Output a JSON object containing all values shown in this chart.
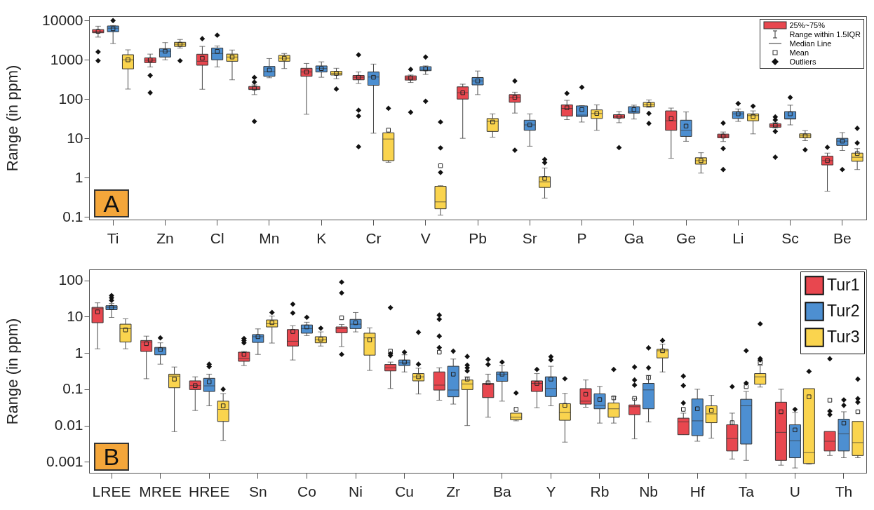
{
  "chart_data": [
    {
      "type": "box",
      "title": "A",
      "ylabel": "Range (in ppm)",
      "log": true,
      "ylim": [
        0.085,
        13000
      ],
      "yticks": [
        0.1,
        1,
        10,
        100,
        1000,
        10000
      ],
      "categories": [
        "Ti",
        "Zn",
        "Cl",
        "Mn",
        "K",
        "Cr",
        "V",
        "Pb",
        "Sr",
        "P",
        "Ga",
        "Ge",
        "Li",
        "Sc",
        "Be"
      ],
      "annotations": [
        "25%~75%",
        "Range within 1.5IQR",
        "Median Line",
        "Mean",
        "Outliers"
      ],
      "series": [
        {
          "color": "#e8474f",
          "boxes": [
            {
              "low": 3800,
              "q1": 4900,
              "median": 5300,
              "q3": 5900,
              "high": 7200,
              "mean": 5300,
              "outliers": [
                1600,
                950
              ]
            },
            {
              "low": 660,
              "q1": 850,
              "median": 980,
              "q3": 1120,
              "high": 1400,
              "mean": 1000,
              "outliers": [
                400,
                145
              ]
            },
            {
              "low": 178,
              "q1": 730,
              "median": 920,
              "q3": 1390,
              "high": 2200,
              "mean": 1100,
              "outliers": [
                3450
              ]
            },
            {
              "low": 130,
              "q1": 175,
              "median": 190,
              "q3": 210,
              "high": 230,
              "mean": 190,
              "outliers": [
                355,
                270,
                27
              ]
            },
            {
              "low": 41,
              "q1": 380,
              "median": 490,
              "q3": 610,
              "high": 810,
              "mean": 490
            },
            {
              "low": 250,
              "q1": 310,
              "median": 360,
              "q3": 400,
              "high": 490,
              "mean": 360,
              "outliers": [
                1340,
                52,
                37,
                6.1
              ]
            },
            {
              "low": 265,
              "q1": 305,
              "median": 345,
              "q3": 390,
              "high": 410,
              "mean": 345,
              "outliers": [
                570,
                46
              ]
            },
            {
              "low": 10,
              "q1": 100,
              "median": 145,
              "q3": 205,
              "high": 240,
              "mean": 145
            },
            {
              "low": 44,
              "q1": 83,
              "median": 110,
              "q3": 130,
              "high": 150,
              "mean": 110,
              "outliers": [
                290,
                5
              ]
            },
            {
              "low": 30,
              "q1": 37,
              "median": 58,
              "q3": 71,
              "high": 93,
              "mean": 60,
              "outliers": [
                140
              ]
            },
            {
              "low": 25,
              "q1": 33,
              "median": 36,
              "q3": 40,
              "high": 48,
              "mean": 36,
              "outliers": [
                5.8
              ]
            },
            {
              "low": 3.1,
              "q1": 16,
              "median": 28,
              "q3": 50,
              "high": 59,
              "mean": 32
            },
            {
              "low": 8.3,
              "q1": 10.3,
              "median": 11.4,
              "q3": 12.8,
              "high": 14.5,
              "mean": 11.4,
              "outliers": [
                24.5,
                5.5,
                1.6
              ]
            },
            {
              "low": 18.5,
              "q1": 19.2,
              "median": 21.7,
              "q3": 23.5,
              "high": 25,
              "mean": 21.7,
              "outliers": [
                35,
                29.5,
                15,
                3.3
              ]
            },
            {
              "low": 0.45,
              "q1": 2.1,
              "median": 2.7,
              "q3": 3.5,
              "high": 4.2,
              "mean": 2.7,
              "outliers": [
                5.9
              ]
            }
          ]
        },
        {
          "color": "#4d8fd1",
          "boxes": [
            {
              "low": 2600,
              "q1": 5200,
              "median": 6400,
              "q3": 7300,
              "high": 7500,
              "mean": 6200,
              "outliers": [
                10000
              ]
            },
            {
              "low": 1000,
              "q1": 1180,
              "median": 1660,
              "q3": 1930,
              "high": 2750,
              "mean": 1660
            },
            {
              "low": 660,
              "q1": 1000,
              "median": 1450,
              "q3": 2000,
              "high": 2250,
              "mean": 1640,
              "outliers": [
                4250
              ]
            },
            {
              "low": 350,
              "q1": 380,
              "median": 500,
              "q3": 680,
              "high": 1080,
              "mean": 550
            },
            {
              "low": 360,
              "q1": 490,
              "median": 600,
              "q3": 700,
              "high": 890,
              "mean": 600
            },
            {
              "low": 13.5,
              "q1": 225,
              "median": 365,
              "q3": 490,
              "high": 780,
              "mean": 360
            },
            {
              "low": 425,
              "q1": 530,
              "median": 580,
              "q3": 670,
              "high": 700,
              "mean": 590,
              "outliers": [
                1180,
                88
              ]
            },
            {
              "low": 130,
              "q1": 230,
              "median": 290,
              "q3": 355,
              "high": 520,
              "mean": 290
            },
            {
              "low": 6.3,
              "q1": 16,
              "median": 22,
              "q3": 29,
              "high": 42,
              "mean": 22
            },
            {
              "low": 26,
              "q1": 36,
              "median": 39,
              "q3": 67,
              "high": 68,
              "mean": 54,
              "outliers": [
                200
              ]
            },
            {
              "low": 31,
              "q1": 44,
              "median": 48,
              "q3": 64,
              "high": 70,
              "mean": 54
            },
            {
              "low": 8.4,
              "q1": 11.2,
              "median": 16,
              "q3": 29,
              "high": 47,
              "mean": 20.5
            },
            {
              "low": 27,
              "q1": 32,
              "median": 42,
              "q3": 48,
              "high": 56,
              "mean": 42,
              "outliers": [
                77
              ]
            },
            {
              "low": 22,
              "q1": 31,
              "median": 32,
              "q3": 48,
              "high": 70,
              "mean": 42,
              "outliers": [
                110
              ]
            },
            {
              "low": 4.9,
              "q1": 6.6,
              "median": 8.5,
              "q3": 10,
              "high": 14,
              "mean": 8.5,
              "outliers": [
                1.6
              ]
            }
          ]
        },
        {
          "color": "#fad44e",
          "boxes": [
            {
              "low": 180,
              "q1": 590,
              "median": 1000,
              "q3": 1350,
              "high": 1800,
              "mean": 1000
            },
            {
              "low": 2000,
              "q1": 2200,
              "median": 2500,
              "q3": 2800,
              "high": 3300,
              "mean": 2500,
              "outliers": [
                950
              ]
            },
            {
              "low": 310,
              "q1": 920,
              "median": 1180,
              "q3": 1400,
              "high": 1780,
              "mean": 1180
            },
            {
              "low": 600,
              "q1": 920,
              "median": 1100,
              "q3": 1300,
              "high": 1450,
              "mean": 1100
            },
            {
              "low": 330,
              "q1": 410,
              "median": 450,
              "q3": 510,
              "high": 610,
              "mean": 450,
              "outliers": [
                180
              ]
            },
            {
              "low": 2.45,
              "q1": 2.7,
              "median": 9.6,
              "q3": 13.8,
              "high": 13.8,
              "mean": 16.2,
              "outliers": [
                58
              ]
            },
            {
              "low": 0.11,
              "q1": 0.16,
              "median": 0.24,
              "q3": 0.6,
              "high": 0.62,
              "mean": 2,
              "outliers": [
                26,
                5.7,
                1.35
              ]
            },
            {
              "low": 10.7,
              "q1": 15,
              "median": 27,
              "q3": 32,
              "high": 42,
              "mean": 26
            },
            {
              "low": 0.3,
              "q1": 0.56,
              "median": 0.78,
              "q3": 1.05,
              "high": 1.75,
              "mean": 0.95,
              "outliers": [
                2.9,
                2.4
              ]
            },
            {
              "low": 16,
              "q1": 32,
              "median": 43,
              "q3": 53,
              "high": 71,
              "mean": 43
            },
            {
              "low": 62,
              "q1": 64,
              "median": 72,
              "q3": 82,
              "high": 95,
              "mean": 72,
              "outliers": [
                43,
                24
              ]
            },
            {
              "low": 1.3,
              "q1": 2.2,
              "median": 2.7,
              "q3": 3.2,
              "high": 4.3,
              "mean": 2.7
            },
            {
              "low": 13,
              "q1": 28,
              "median": 38,
              "q3": 42,
              "high": 50,
              "mean": 36,
              "outliers": [
                66
              ]
            },
            {
              "low": 8.7,
              "q1": 10.3,
              "median": 11.5,
              "q3": 13,
              "high": 15.7,
              "mean": 11.5,
              "outliers": [
                5.1
              ]
            },
            {
              "low": 1.6,
              "q1": 2.6,
              "median": 3.3,
              "q3": 4.2,
              "high": 5.5,
              "mean": 4.1,
              "outliers": [
                18,
                7.6
              ]
            }
          ]
        }
      ]
    },
    {
      "type": "box",
      "title": "B",
      "ylabel": "Range (in ppm)",
      "log": true,
      "ylim": [
        0.0005,
        200
      ],
      "yticks": [
        0.001,
        0.01,
        0.1,
        1,
        10,
        100
      ],
      "legend": "top right",
      "categories": [
        "LREE",
        "MREE",
        "HREE",
        "Sn",
        "Co",
        "Ni",
        "Cu",
        "Zr",
        "Ba",
        "Y",
        "Rb",
        "Nb",
        "Hf",
        "Ta",
        "U",
        "Th"
      ],
      "series": [
        {
          "name": "Tur1",
          "color": "#e8474f",
          "boxes": [
            {
              "low": 1.3,
              "q1": 6.8,
              "median": 16.5,
              "q3": 18,
              "high": 24,
              "mean": 13.5
            },
            {
              "low": 0.195,
              "q1": 1.1,
              "median": 2.0,
              "q3": 2.2,
              "high": 2.9,
              "mean": 1.8
            },
            {
              "low": 0.026,
              "q1": 0.098,
              "median": 0.126,
              "q3": 0.17,
              "high": 0.22,
              "mean": 0.126
            },
            {
              "low": 0.45,
              "q1": 0.59,
              "median": 0.7,
              "q3": 1.05,
              "high": 1.1,
              "mean": 0.91,
              "outliers": [
                2.5,
                2.2,
                1.9
              ]
            },
            {
              "low": 0.64,
              "q1": 1.55,
              "median": 2.1,
              "q3": 4.4,
              "high": 5.6,
              "mean": 3.9,
              "outliers": [
                22,
                12.6
              ]
            },
            {
              "low": 1.5,
              "q1": 3.6,
              "median": 4.7,
              "q3": 5.2,
              "high": 6.1,
              "mean": 9.3,
              "outliers": [
                89,
                45,
                0.91
              ]
            },
            {
              "low": 0.105,
              "q1": 0.32,
              "median": 0.39,
              "q3": 0.48,
              "high": 0.56,
              "mean": 1.12,
              "outliers": [
                17.7,
                0.95,
                0.85
              ]
            },
            {
              "low": 0.05,
              "q1": 0.095,
              "median": 0.13,
              "q3": 0.3,
              "high": 0.39,
              "mean": 1.05,
              "outliers": [
                11,
                8.5,
                2.9,
                1.4
              ]
            },
            {
              "low": 0.017,
              "q1": 0.059,
              "median": 0.135,
              "q3": 0.144,
              "high": 0.26,
              "mean": 0.15,
              "outliers": [
                0.66,
                0.48
              ]
            },
            {
              "low": 0.031,
              "q1": 0.087,
              "median": 0.145,
              "q3": 0.17,
              "high": 0.27,
              "mean": 0.145,
              "outliers": [
                0.35
              ]
            },
            {
              "low": 0.032,
              "q1": 0.039,
              "median": 0.047,
              "q3": 0.104,
              "high": 0.18,
              "mean": 0.073
            },
            {
              "low": 0.0043,
              "q1": 0.02,
              "median": 0.033,
              "q3": 0.037,
              "high": 0.056,
              "mean": 0.056,
              "outliers": [
                0.41,
                0.18,
                0.13
              ]
            },
            {
              "low": 0.0056,
              "q1": 0.0056,
              "median": 0.0127,
              "q3": 0.016,
              "high": 0.022,
              "mean": 0.028,
              "outliers": [
                0.23,
                0.126,
                0.042
              ]
            },
            {
              "low": 0.0012,
              "q1": 0.002,
              "median": 0.0044,
              "q3": 0.0105,
              "high": 0.022,
              "mean": 0.012,
              "outliers": [
                0.118
              ]
            },
            {
              "low": 0.00081,
              "q1": 0.0011,
              "median": 0.0065,
              "q3": 0.044,
              "high": 0.1,
              "mean": 0.024
            },
            {
              "low": 0.0015,
              "q1": 0.002,
              "median": 0.0037,
              "q3": 0.0069,
              "high": 0.0069,
              "mean": 0.05,
              "outliers": [
                0.69,
                0.025,
                0.02
              ]
            }
          ]
        },
        {
          "name": "Tur2",
          "color": "#4d8fd1",
          "boxes": [
            {
              "low": 9.5,
              "q1": 15.5,
              "median": 18,
              "q3": 20,
              "high": 23,
              "mean": 18,
              "outliers": [
                38,
                33,
                28
              ]
            },
            {
              "low": 0.49,
              "q1": 0.89,
              "median": 1.3,
              "q3": 1.42,
              "high": 1.9,
              "mean": 1.24,
              "outliers": [
                2.6
              ]
            },
            {
              "low": 0.035,
              "q1": 0.087,
              "median": 0.124,
              "q3": 0.2,
              "high": 0.26,
              "mean": 0.16,
              "outliers": [
                0.49,
                0.42
              ]
            },
            {
              "low": 0.91,
              "q1": 1.95,
              "median": 2.8,
              "q3": 3.2,
              "high": 4.6,
              "mean": 2.8
            },
            {
              "low": 3.0,
              "q1": 3.5,
              "median": 4.7,
              "q3": 5.9,
              "high": 7,
              "mean": 5.2,
              "outliers": [
                9.6
              ]
            },
            {
              "low": 3.8,
              "q1": 4.7,
              "median": 6.2,
              "q3": 8.4,
              "high": 13,
              "mean": 6.8
            },
            {
              "low": 0.3,
              "q1": 0.45,
              "median": 0.54,
              "q3": 0.64,
              "high": 0.89,
              "mean": 0.56,
              "outliers": [
                1.05
              ]
            },
            {
              "low": 0.039,
              "q1": 0.062,
              "median": 0.095,
              "q3": 0.43,
              "high": 0.68,
              "mean": 0.26,
              "outliers": [
                1.12
              ]
            },
            {
              "low": 0.047,
              "q1": 0.166,
              "median": 0.26,
              "q3": 0.3,
              "high": 0.45,
              "mean": 0.26,
              "outliers": [
                0.56
              ]
            },
            {
              "low": 0.035,
              "q1": 0.063,
              "median": 0.105,
              "q3": 0.22,
              "high": 0.43,
              "mean": 0.19,
              "outliers": [
                0.79,
                0.64
              ]
            },
            {
              "low": 0.0117,
              "q1": 0.029,
              "median": 0.036,
              "q3": 0.075,
              "high": 0.12,
              "mean": 0.052
            },
            {
              "low": 0.0126,
              "q1": 0.029,
              "median": 0.096,
              "q3": 0.145,
              "high": 0.24,
              "mean": 0.21,
              "outliers": [
                1.38,
                0.39
              ]
            },
            {
              "low": 0.0037,
              "q1": 0.0053,
              "median": 0.0135,
              "q3": 0.054,
              "high": 0.1,
              "mean": 0.029
            },
            {
              "low": 0.0011,
              "q1": 0.0031,
              "median": 0.035,
              "q3": 0.053,
              "high": 0.087,
              "mean": 0.118,
              "outliers": [
                1.15,
                0.148
              ]
            },
            {
              "low": 0.00068,
              "q1": 0.0013,
              "median": 0.0038,
              "q3": 0.0105,
              "high": 0.023,
              "mean": 0.0076,
              "outliers": [
                0.028
              ]
            },
            {
              "low": 0.0013,
              "q1": 0.002,
              "median": 0.0059,
              "q3": 0.015,
              "high": 0.024,
              "mean": 0.0117,
              "outliers": [
                0.051,
                0.036
              ]
            }
          ]
        },
        {
          "name": "Tur3",
          "color": "#fad44e",
          "boxes": [
            {
              "low": 1.3,
              "q1": 2.0,
              "median": 4.7,
              "q3": 6.2,
              "high": 8.7,
              "mean": 4.3
            },
            {
              "low": 0.0068,
              "q1": 0.11,
              "median": 0.23,
              "q3": 0.26,
              "high": 0.41,
              "mean": 0.19
            },
            {
              "low": 0.0039,
              "q1": 0.013,
              "median": 0.028,
              "q3": 0.047,
              "high": 0.076,
              "mean": 0.035,
              "outliers": [
                0.1
              ]
            },
            {
              "low": 1.87,
              "q1": 5.2,
              "median": 6.4,
              "q3": 8.1,
              "high": 10.4,
              "mean": 6.8,
              "outliers": [
                13
              ]
            },
            {
              "low": 1.55,
              "q1": 1.9,
              "median": 2.3,
              "q3": 2.8,
              "high": 3.8,
              "mean": 2.4,
              "outliers": [
                4.8
              ]
            },
            {
              "low": 0.33,
              "q1": 0.87,
              "median": 2.6,
              "q3": 3.5,
              "high": 4.9,
              "mean": 2.3
            },
            {
              "low": 0.074,
              "q1": 0.17,
              "median": 0.22,
              "q3": 0.27,
              "high": 0.38,
              "mean": 0.22,
              "outliers": [
                3.7,
                0.49
              ]
            },
            {
              "low": 0.01,
              "q1": 0.098,
              "median": 0.14,
              "q3": 0.18,
              "high": 0.22,
              "mean": 0.19,
              "outliers": [
                0.8,
                0.46,
                0.39,
                0.32
              ]
            },
            {
              "low": 0.0135,
              "q1": 0.0145,
              "median": 0.017,
              "q3": 0.022,
              "high": 0.022,
              "mean": 0.028,
              "outliers": [
                0.079
              ]
            },
            {
              "low": 0.0035,
              "q1": 0.014,
              "median": 0.023,
              "q3": 0.04,
              "high": 0.077,
              "mean": 0.036,
              "outliers": [
                0.195
              ]
            },
            {
              "low": 0.0117,
              "q1": 0.017,
              "median": 0.029,
              "q3": 0.042,
              "high": 0.063,
              "mean": 0.058,
              "outliers": [
                0.35
              ]
            },
            {
              "low": 0.3,
              "q1": 0.73,
              "median": 1.15,
              "q3": 1.26,
              "high": 1.75,
              "mean": 1.15,
              "outliers": [
                2.2
              ]
            },
            {
              "low": 0.0045,
              "q1": 0.012,
              "median": 0.021,
              "q3": 0.035,
              "high": 0.068,
              "mean": 0.026
            },
            {
              "low": 0.115,
              "q1": 0.138,
              "median": 0.22,
              "q3": 0.27,
              "high": 0.45,
              "mean": 0.54,
              "outliers": [
                6.3,
                0.7,
                0.64
              ]
            },
            {
              "low": 0.00087,
              "q1": 0.0009,
              "median": 0.0018,
              "q3": 0.104,
              "high": 0.104,
              "mean": 0.062,
              "outliers": [
                0.31
              ]
            },
            {
              "low": 0.0013,
              "q1": 0.0015,
              "median": 0.0034,
              "q3": 0.013,
              "high": 0.013,
              "mean": 0.024,
              "outliers": [
                0.19,
                0.055,
                0.044
              ]
            }
          ]
        }
      ]
    }
  ]
}
